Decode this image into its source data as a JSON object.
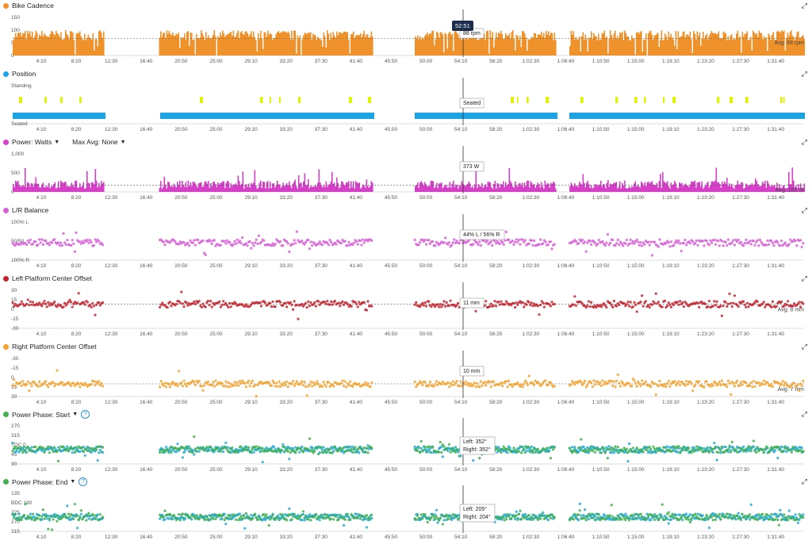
{
  "colors": {
    "orange": "#f0922b",
    "blue": "#1ba3e3",
    "lime": "#dff20a",
    "magenta": "#d63fc8",
    "pink": "#d85fd8",
    "red": "#c42430",
    "amber": "#f5a22d",
    "green": "#3fb04a",
    "cyan": "#22a9d9"
  },
  "ui": {
    "expand_icon": "expand-icon",
    "help_icon": "help-icon",
    "caret": "▼"
  },
  "x_ticks": [
    "4:10",
    "8:20",
    "12:30",
    "16:40",
    "20:50",
    "25:00",
    "29:10",
    "33:20",
    "37:30",
    "41:40",
    "45:50",
    "50:00",
    "54:10",
    "58:20",
    "1:02:30",
    "1:06:40",
    "1:10:50",
    "1:15:00",
    "1:19:10",
    "1:23:20",
    "1:27:30",
    "1:31:40"
  ],
  "cursor": {
    "time": "52:51"
  },
  "panels": [
    {
      "title": "Bike Cadence",
      "color": "orange",
      "type": "area",
      "yticks": [
        "150",
        "100",
        "50",
        "0"
      ],
      "ylim": [
        0,
        150
      ],
      "avg_value": 68,
      "avg_label": "Avg: 68 rpm",
      "tooltip": [
        "88 rpm"
      ]
    },
    {
      "title": "Position",
      "color": "blue",
      "type": "bars",
      "yticks": [
        "Standing",
        "Seated"
      ],
      "tooltip": [
        "Seated"
      ]
    },
    {
      "title": "Power: Watts",
      "subtitle": "Max Avg: None",
      "color": "magenta",
      "type": "area",
      "yticks": [
        "1,000",
        "500",
        "0"
      ],
      "ylim": [
        0,
        1000
      ],
      "avg_value": 182,
      "avg_label": "Avg: 182 W",
      "tooltip": [
        "373 W"
      ]
    },
    {
      "title": "L/R Balance",
      "color": "pink",
      "type": "scatter",
      "yticks": [
        "100% L",
        "50/50",
        "100% R"
      ],
      "tooltip": [
        "44% L / 56% R"
      ]
    },
    {
      "title": "Left Platform Center Offset",
      "color": "red",
      "type": "scatter",
      "yticks": [
        "30",
        "15",
        "0",
        "-15",
        "-30"
      ],
      "ylim": [
        -30,
        30
      ],
      "avg_value": 8,
      "avg_label": "Avg: 8 mm",
      "tooltip": [
        "11 mm"
      ]
    },
    {
      "title": "Right Platform Center Offset",
      "color": "amber",
      "type": "scatter",
      "yticks": [
        "-30",
        "-15",
        "0",
        "15",
        "30"
      ],
      "ylim": [
        -30,
        30
      ],
      "avg_value": 7,
      "avg_label": "Avg: 7 mm",
      "tooltip": [
        "10 mm"
      ]
    },
    {
      "title": "Power Phase: Start",
      "color": "green",
      "type": "scatter2",
      "yticks": [
        "270",
        "315",
        "TDC 0",
        "45",
        "90"
      ],
      "tooltip": [
        "Left: 352°",
        "Right: 352°"
      ]
    },
    {
      "title": "Power Phase: End",
      "color": "green",
      "type": "scatter2",
      "yticks": [
        "135",
        "BDC 180",
        "225",
        "270",
        "315"
      ],
      "tooltip": [
        "Left: 205°",
        "Right: 204°"
      ]
    }
  ]
}
